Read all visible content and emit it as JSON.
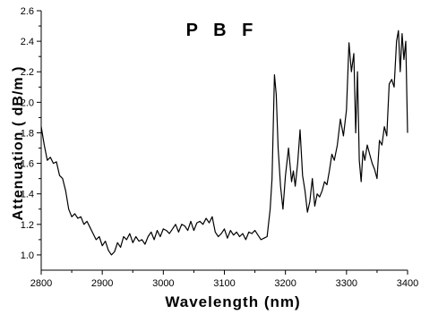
{
  "chart_data": {
    "type": "line",
    "title": "P B F",
    "xlabel": "Wavelength (nm)",
    "ylabel": "Attenuation ( dB/m )",
    "xlim": [
      2800,
      3400
    ],
    "ylim": [
      0.9,
      2.6
    ],
    "x_ticks": [
      2800,
      2900,
      3000,
      3100,
      3200,
      3300,
      3400
    ],
    "x_tick_labels": [
      "2800",
      "2900",
      "3000",
      "3100",
      "3200",
      "3300",
      "3400"
    ],
    "y_ticks": [
      1.0,
      1.2,
      1.4,
      1.6,
      1.8,
      2.0,
      2.2,
      2.4,
      2.6
    ],
    "y_tick_labels": [
      "1.0",
      "1.2",
      "1.4",
      "1.6",
      "1.8",
      "2.0",
      "2.2",
      "2.4",
      "2.6"
    ],
    "grid": false,
    "legend": "none",
    "line_color": "#000000",
    "series": [
      {
        "x": [
          2800,
          2805,
          2810,
          2815,
          2820,
          2825,
          2830,
          2835,
          2840,
          2845,
          2850,
          2855,
          2860,
          2865,
          2870,
          2875,
          2880,
          2885,
          2890,
          2895,
          2900,
          2905,
          2910,
          2915,
          2920,
          2925,
          2930,
          2935,
          2940,
          2945,
          2950,
          2955,
          2960,
          2965,
          2970,
          2975,
          2980,
          2985,
          2990,
          2995,
          3000,
          3005,
          3010,
          3015,
          3020,
          3025,
          3030,
          3035,
          3040,
          3045,
          3050,
          3055,
          3060,
          3065,
          3070,
          3075,
          3080,
          3085,
          3090,
          3095,
          3100,
          3105,
          3110,
          3115,
          3120,
          3125,
          3130,
          3135,
          3140,
          3145,
          3150,
          3155,
          3160,
          3165,
          3170,
          3175,
          3178,
          3182,
          3185,
          3188,
          3192,
          3196,
          3200,
          3205,
          3210,
          3213,
          3216,
          3220,
          3224,
          3228,
          3232,
          3236,
          3240,
          3244,
          3248,
          3252,
          3256,
          3260,
          3264,
          3268,
          3272,
          3276,
          3280,
          3285,
          3290,
          3295,
          3300,
          3304,
          3308,
          3312,
          3315,
          3318,
          3321,
          3324,
          3327,
          3330,
          3334,
          3338,
          3342,
          3346,
          3350,
          3354,
          3358,
          3362,
          3366,
          3370,
          3374,
          3378,
          3382,
          3385,
          3388,
          3391,
          3394,
          3397,
          3400
        ],
        "y": [
          1.84,
          1.72,
          1.62,
          1.64,
          1.6,
          1.61,
          1.52,
          1.5,
          1.42,
          1.3,
          1.25,
          1.27,
          1.24,
          1.25,
          1.2,
          1.22,
          1.18,
          1.14,
          1.1,
          1.12,
          1.06,
          1.09,
          1.03,
          1.0,
          1.02,
          1.08,
          1.05,
          1.12,
          1.1,
          1.14,
          1.08,
          1.12,
          1.09,
          1.1,
          1.07,
          1.12,
          1.15,
          1.1,
          1.16,
          1.12,
          1.17,
          1.16,
          1.14,
          1.17,
          1.2,
          1.15,
          1.2,
          1.19,
          1.16,
          1.22,
          1.16,
          1.21,
          1.22,
          1.2,
          1.24,
          1.21,
          1.25,
          1.15,
          1.12,
          1.14,
          1.17,
          1.11,
          1.16,
          1.13,
          1.15,
          1.12,
          1.14,
          1.1,
          1.15,
          1.14,
          1.16,
          1.13,
          1.1,
          1.11,
          1.12,
          1.3,
          1.5,
          2.18,
          2.05,
          1.7,
          1.45,
          1.3,
          1.52,
          1.7,
          1.48,
          1.55,
          1.45,
          1.6,
          1.82,
          1.52,
          1.42,
          1.28,
          1.35,
          1.5,
          1.32,
          1.4,
          1.38,
          1.42,
          1.48,
          1.46,
          1.55,
          1.66,
          1.62,
          1.72,
          1.89,
          1.78,
          1.95,
          2.39,
          2.2,
          2.32,
          1.8,
          2.2,
          1.62,
          1.48,
          1.68,
          1.62,
          1.72,
          1.66,
          1.6,
          1.56,
          1.5,
          1.75,
          1.72,
          1.84,
          1.78,
          2.12,
          2.15,
          2.1,
          2.4,
          2.47,
          2.2,
          2.45,
          2.28,
          2.4,
          1.8
        ]
      }
    ]
  }
}
